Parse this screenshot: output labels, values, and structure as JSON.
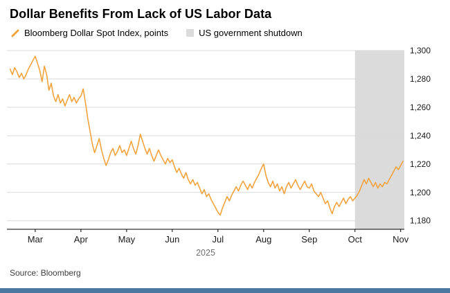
{
  "header": {
    "title": "Dollar Benefits From Lack of US Labor Data"
  },
  "legend": [
    {
      "label": "Bloomberg Dollar Spot Index, points",
      "marker": "line"
    },
    {
      "label": "US government shutdown",
      "marker": "band"
    }
  ],
  "footer": {
    "source": "Source: Bloomberg"
  },
  "colors": {
    "accent": "#F2A33C",
    "band": "#DBDBDB",
    "grid": "#D9D9D9",
    "axis": "#000000",
    "axis_text": "#1a1a1a",
    "year_text": "#6f6f6f",
    "footer_bar": "#4A78A0"
  },
  "chart_data": {
    "type": "line",
    "title": "Dollar Benefits From Lack of US Labor Data",
    "xlabel": "",
    "ylabel": "points",
    "legend_position": "top",
    "grid": true,
    "x_domain": [
      -0.62,
      8.08
    ],
    "y_domain": [
      1174,
      1300
    ],
    "year_label": "2025",
    "x_ticks": [
      {
        "value": 0,
        "label": "Mar"
      },
      {
        "value": 1,
        "label": "Apr"
      },
      {
        "value": 2,
        "label": "May"
      },
      {
        "value": 3,
        "label": "Jun"
      },
      {
        "value": 4,
        "label": "Jul"
      },
      {
        "value": 5,
        "label": "Aug"
      },
      {
        "value": 6,
        "label": "Sep"
      },
      {
        "value": 7,
        "label": "Oct"
      },
      {
        "value": 8,
        "label": "Nov"
      }
    ],
    "y_ticks": [
      {
        "value": 1300,
        "label": "1,300"
      },
      {
        "value": 1280,
        "label": "1,280"
      },
      {
        "value": 1260,
        "label": "1,260"
      },
      {
        "value": 1240,
        "label": "1,240"
      },
      {
        "value": 1220,
        "label": "1,220"
      },
      {
        "value": 1200,
        "label": "1,200"
      },
      {
        "value": 1180,
        "label": "1,180"
      }
    ],
    "band": {
      "label": "US government shutdown",
      "x_start": 7.0,
      "x_end": 8.08,
      "color": "#DBDBDB"
    },
    "series": [
      {
        "name": "Bloomberg Dollar Spot Index, points",
        "color": "#F2A33C",
        "points": [
          [
            -0.55,
            1287
          ],
          [
            -0.5,
            1283
          ],
          [
            -0.45,
            1288
          ],
          [
            -0.4,
            1285
          ],
          [
            -0.35,
            1281
          ],
          [
            -0.3,
            1284
          ],
          [
            -0.25,
            1280
          ],
          [
            -0.2,
            1283
          ],
          [
            -0.15,
            1287
          ],
          [
            -0.1,
            1290
          ],
          [
            -0.05,
            1293
          ],
          [
            0.0,
            1296
          ],
          [
            0.05,
            1291
          ],
          [
            0.1,
            1286
          ],
          [
            0.15,
            1278
          ],
          [
            0.2,
            1289
          ],
          [
            0.25,
            1283
          ],
          [
            0.3,
            1272
          ],
          [
            0.35,
            1277
          ],
          [
            0.4,
            1268
          ],
          [
            0.45,
            1264
          ],
          [
            0.5,
            1269
          ],
          [
            0.55,
            1263
          ],
          [
            0.6,
            1266
          ],
          [
            0.65,
            1261
          ],
          [
            0.7,
            1265
          ],
          [
            0.75,
            1269
          ],
          [
            0.8,
            1264
          ],
          [
            0.85,
            1267
          ],
          [
            0.9,
            1263
          ],
          [
            0.95,
            1266
          ],
          [
            1.0,
            1268
          ],
          [
            1.05,
            1273
          ],
          [
            1.1,
            1263
          ],
          [
            1.15,
            1252
          ],
          [
            1.2,
            1243
          ],
          [
            1.25,
            1234
          ],
          [
            1.3,
            1228
          ],
          [
            1.35,
            1233
          ],
          [
            1.4,
            1238
          ],
          [
            1.45,
            1230
          ],
          [
            1.5,
            1224
          ],
          [
            1.55,
            1219
          ],
          [
            1.6,
            1223
          ],
          [
            1.65,
            1228
          ],
          [
            1.7,
            1231
          ],
          [
            1.75,
            1226
          ],
          [
            1.8,
            1229
          ],
          [
            1.85,
            1233
          ],
          [
            1.9,
            1228
          ],
          [
            1.95,
            1230
          ],
          [
            2.0,
            1226
          ],
          [
            2.05,
            1231
          ],
          [
            2.1,
            1236
          ],
          [
            2.15,
            1231
          ],
          [
            2.2,
            1227
          ],
          [
            2.25,
            1233
          ],
          [
            2.3,
            1241
          ],
          [
            2.35,
            1236
          ],
          [
            2.4,
            1231
          ],
          [
            2.45,
            1227
          ],
          [
            2.5,
            1231
          ],
          [
            2.55,
            1226
          ],
          [
            2.6,
            1222
          ],
          [
            2.65,
            1226
          ],
          [
            2.7,
            1230
          ],
          [
            2.75,
            1226
          ],
          [
            2.8,
            1223
          ],
          [
            2.85,
            1220
          ],
          [
            2.9,
            1224
          ],
          [
            2.95,
            1221
          ],
          [
            3.0,
            1223
          ],
          [
            3.05,
            1218
          ],
          [
            3.1,
            1214
          ],
          [
            3.15,
            1217
          ],
          [
            3.2,
            1213
          ],
          [
            3.25,
            1210
          ],
          [
            3.3,
            1214
          ],
          [
            3.35,
            1209
          ],
          [
            3.4,
            1206
          ],
          [
            3.45,
            1209
          ],
          [
            3.5,
            1205
          ],
          [
            3.55,
            1207
          ],
          [
            3.6,
            1203
          ],
          [
            3.65,
            1199
          ],
          [
            3.7,
            1202
          ],
          [
            3.75,
            1197
          ],
          [
            3.8,
            1199
          ],
          [
            3.85,
            1195
          ],
          [
            3.9,
            1192
          ],
          [
            3.95,
            1189
          ],
          [
            4.0,
            1186
          ],
          [
            4.05,
            1184
          ],
          [
            4.1,
            1189
          ],
          [
            4.15,
            1193
          ],
          [
            4.2,
            1197
          ],
          [
            4.25,
            1194
          ],
          [
            4.3,
            1198
          ],
          [
            4.35,
            1201
          ],
          [
            4.4,
            1204
          ],
          [
            4.45,
            1201
          ],
          [
            4.5,
            1205
          ],
          [
            4.55,
            1208
          ],
          [
            4.6,
            1205
          ],
          [
            4.65,
            1202
          ],
          [
            4.7,
            1206
          ],
          [
            4.75,
            1203
          ],
          [
            4.8,
            1207
          ],
          [
            4.85,
            1210
          ],
          [
            4.9,
            1213
          ],
          [
            4.95,
            1217
          ],
          [
            5.0,
            1220
          ],
          [
            5.05,
            1212
          ],
          [
            5.1,
            1207
          ],
          [
            5.15,
            1204
          ],
          [
            5.2,
            1208
          ],
          [
            5.25,
            1203
          ],
          [
            5.3,
            1206
          ],
          [
            5.35,
            1201
          ],
          [
            5.4,
            1204
          ],
          [
            5.45,
            1199
          ],
          [
            5.5,
            1204
          ],
          [
            5.55,
            1207
          ],
          [
            5.6,
            1203
          ],
          [
            5.65,
            1206
          ],
          [
            5.7,
            1209
          ],
          [
            5.75,
            1205
          ],
          [
            5.8,
            1202
          ],
          [
            5.85,
            1205
          ],
          [
            5.9,
            1208
          ],
          [
            5.95,
            1204
          ],
          [
            6.0,
            1203
          ],
          [
            6.05,
            1206
          ],
          [
            6.1,
            1201
          ],
          [
            6.15,
            1199
          ],
          [
            6.2,
            1197
          ],
          [
            6.25,
            1200
          ],
          [
            6.3,
            1196
          ],
          [
            6.35,
            1192
          ],
          [
            6.4,
            1194
          ],
          [
            6.45,
            1189
          ],
          [
            6.5,
            1185
          ],
          [
            6.55,
            1190
          ],
          [
            6.6,
            1193
          ],
          [
            6.65,
            1190
          ],
          [
            6.7,
            1193
          ],
          [
            6.75,
            1196
          ],
          [
            6.8,
            1192
          ],
          [
            6.85,
            1195
          ],
          [
            6.9,
            1197
          ],
          [
            6.95,
            1194
          ],
          [
            7.0,
            1196
          ],
          [
            7.05,
            1198
          ],
          [
            7.1,
            1201
          ],
          [
            7.15,
            1205
          ],
          [
            7.2,
            1209
          ],
          [
            7.25,
            1206
          ],
          [
            7.3,
            1210
          ],
          [
            7.35,
            1207
          ],
          [
            7.4,
            1204
          ],
          [
            7.45,
            1207
          ],
          [
            7.5,
            1203
          ],
          [
            7.55,
            1206
          ],
          [
            7.6,
            1204
          ],
          [
            7.65,
            1207
          ],
          [
            7.7,
            1206
          ],
          [
            7.75,
            1209
          ],
          [
            7.8,
            1212
          ],
          [
            7.85,
            1215
          ],
          [
            7.9,
            1218
          ],
          [
            7.95,
            1216
          ],
          [
            8.0,
            1219
          ],
          [
            8.05,
            1222
          ]
        ]
      }
    ]
  }
}
